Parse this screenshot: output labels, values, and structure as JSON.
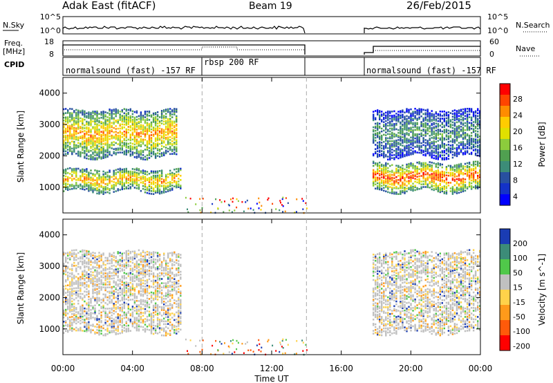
{
  "header": {
    "title": "Adak East (fitACF)",
    "beam": "Beam 19",
    "date": "26/Feb/2015"
  },
  "nsky_panel": {
    "left_label": "N.Sky",
    "left_ticks": [
      "10^5",
      "10^0"
    ],
    "right_label": "N.Search",
    "right_ticks": [
      "10^5",
      "10^0"
    ]
  },
  "freq_panel": {
    "left_label_1": "Freq.",
    "left_label_2": "[MHz]",
    "left_ticks": [
      "18",
      "8"
    ],
    "right_label": "Nave",
    "right_ticks": [
      "60",
      "0"
    ]
  },
  "cpid_panel": {
    "label": "CPID",
    "modes": [
      {
        "text": "normalsound (fast) -157 RF",
        "start_hour": 0
      },
      {
        "text": "rbsp 200 RF",
        "start_hour": 8
      },
      {
        "text": "normalsound (fast) -157 RF",
        "start_hour": 17.5
      }
    ]
  },
  "power_cbar": {
    "label": "Power [dB]",
    "ticks": [
      "28",
      "24",
      "20",
      "16",
      "12",
      "8",
      "4"
    ],
    "colors": [
      "#ff0000",
      "#ff4400",
      "#ff8c00",
      "#ffcc00",
      "#e0e000",
      "#8ccc3c",
      "#50a050",
      "#3c8c78",
      "#2850a0",
      "#1432c8",
      "#0000ff"
    ]
  },
  "velocity_cbar": {
    "label": "Velocity [m s^-1]",
    "ticks": [
      "200",
      "100",
      "50",
      "15",
      "-15",
      "-50",
      "-100",
      "-200"
    ],
    "colors": [
      "#1a3cb4",
      "#3c8c78",
      "#50c84a",
      "#c0c0c0",
      "#ffd24a",
      "#ff9a1a",
      "#ff5a0a",
      "#ff0000"
    ]
  },
  "x_axis": {
    "ticks": [
      "00:00",
      "04:00",
      "08:00",
      "12:00",
      "16:00",
      "20:00",
      "00:00"
    ],
    "label": "Time UT"
  },
  "y_axis": {
    "label": "Slant Range [km]",
    "ticks": [
      "4000",
      "3000",
      "2000",
      "1000"
    ]
  },
  "chart_data": {
    "type": "heatmap",
    "x_range_hours": [
      0,
      24
    ],
    "y_range_km": [
      180,
      4500
    ],
    "data_gaps_hours": [
      [
        14,
        17.5
      ]
    ],
    "dashed_lines_hours": [
      8,
      14
    ],
    "power_band_ranges_km": [
      {
        "start_hour": 0,
        "end_hour": 6.8,
        "range_km": [
          900,
          1600
        ],
        "peak_db": 24
      },
      {
        "start_hour": 0,
        "end_hour": 6.5,
        "range_km": [
          2000,
          3500
        ],
        "peak_db": 24
      },
      {
        "start_hour": 17.8,
        "end_hour": 24,
        "range_km": [
          900,
          1800
        ],
        "peak_db": 28
      },
      {
        "start_hour": 17.8,
        "end_hour": 24,
        "range_km": [
          2000,
          3500
        ],
        "peak_db": 12
      }
    ],
    "velocity_bands": [
      {
        "start_hour": 0,
        "end_hour": 6.8,
        "range_km": [
          900,
          3500
        ],
        "typical_velocity": "-15 to 15"
      },
      {
        "start_hour": 17.8,
        "end_hour": 24,
        "range_km": [
          900,
          3500
        ],
        "typical_velocity": "-15 to 15"
      }
    ]
  }
}
